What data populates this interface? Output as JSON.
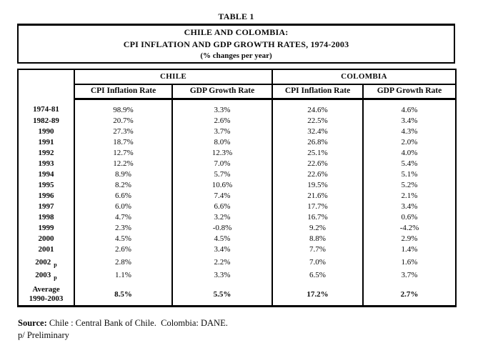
{
  "caption": "TABLE 1",
  "title": {
    "line1": "CHILE AND COLOMBIA:",
    "line2": "CPI INFLATION AND GDP GROWTH RATES, 1974-2003",
    "line3": "(% changes per year)"
  },
  "table": {
    "column_groups": {
      "group1": "CHILE",
      "group2": "COLOMBIA"
    },
    "column_headers": {
      "chile_cpi": "CPI Inflation Rate",
      "chile_gdp": "GDP Growth Rate",
      "colombia_cpi": "CPI Inflation Rate",
      "colombia_gdp": "GDP Growth Rate"
    },
    "rows": [
      {
        "period": "1974-81",
        "values": [
          "98.9%",
          "3.3%",
          "24.6%",
          "4.6%"
        ]
      },
      {
        "period": "1982-89",
        "values": [
          "20.7%",
          "2.6%",
          "22.5%",
          "3.4%"
        ]
      },
      {
        "period": "1990",
        "values": [
          "27.3%",
          "3.7%",
          "32.4%",
          "4.3%"
        ]
      },
      {
        "period": "1991",
        "values": [
          "18.7%",
          "8.0%",
          "26.8%",
          "2.0%"
        ]
      },
      {
        "period": "1992",
        "values": [
          "12.7%",
          "12.3%",
          "25.1%",
          "4.0%"
        ]
      },
      {
        "period": "1993",
        "values": [
          "12.2%",
          "7.0%",
          "22.6%",
          "5.4%"
        ]
      },
      {
        "period": "1994",
        "values": [
          "8.9%",
          "5.7%",
          "22.6%",
          "5.1%"
        ]
      },
      {
        "period": "1995",
        "values": [
          "8.2%",
          "10.6%",
          "19.5%",
          "5.2%"
        ]
      },
      {
        "period": "1996",
        "values": [
          "6.6%",
          "7.4%",
          "21.6%",
          "2.1%"
        ]
      },
      {
        "period": "1997",
        "values": [
          "6.0%",
          "6.6%",
          "17.7%",
          "3.4%"
        ]
      },
      {
        "period": "1998",
        "values": [
          "4.7%",
          "3.2%",
          "16.7%",
          "0.6%"
        ]
      },
      {
        "period": "1999",
        "values": [
          "2.3%",
          "-0.8%",
          "9.2%",
          "-4.2%"
        ]
      },
      {
        "period": "2000",
        "values": [
          "4.5%",
          "4.5%",
          "8.8%",
          "2.9%"
        ]
      },
      {
        "period": "2001",
        "values": [
          "2.6%",
          "3.4%",
          "7.7%",
          "1.4%"
        ]
      },
      {
        "period": "2002",
        "note": "p",
        "values": [
          "2.8%",
          "2.2%",
          "7.0%",
          "1.6%"
        ]
      },
      {
        "period": "2003",
        "note": "p",
        "values": [
          "1.1%",
          "3.3%",
          "6.5%",
          "3.7%"
        ]
      },
      {
        "period_lines": [
          "Average",
          "1990-2003"
        ],
        "values": [
          "8.5%",
          "5.5%",
          "17.2%",
          "2.7%"
        ]
      }
    ]
  },
  "footer": {
    "source_label": "Source:",
    "source_text": "Chile : Central Bank of Chile.  Colombia: DANE.",
    "note": "p/ Preliminary"
  },
  "colors": {
    "ink": "#0a0a0a",
    "paper": "#ffffff"
  }
}
